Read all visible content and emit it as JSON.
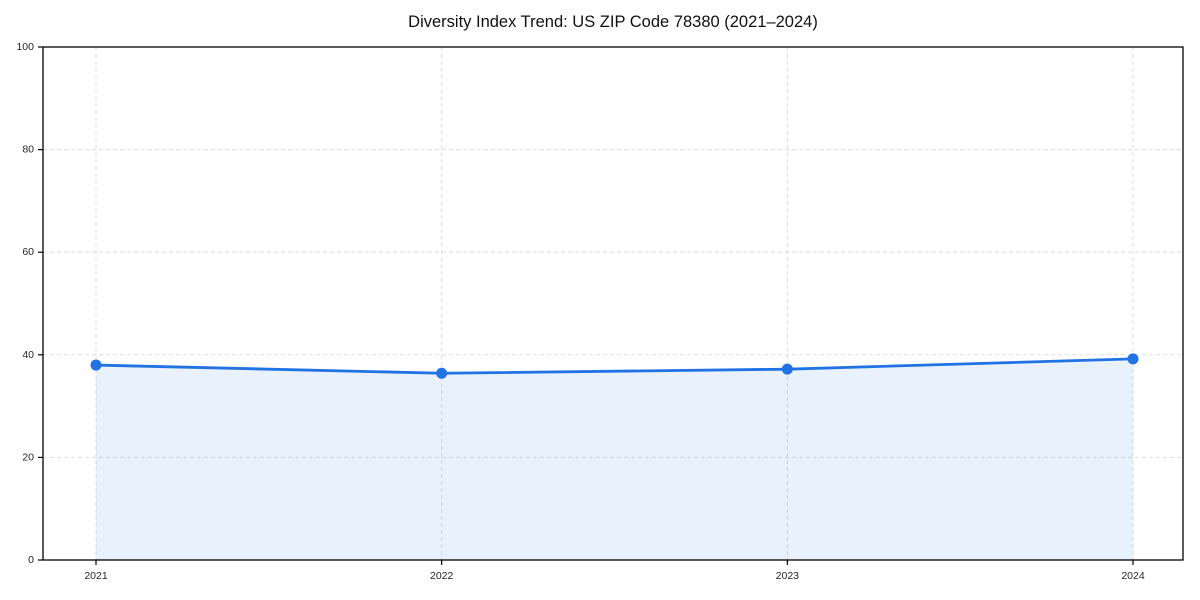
{
  "chart_data": {
    "type": "line",
    "title": "Diversity Index Trend: US ZIP Code 78380 (2021–2024)",
    "x": [
      "2021",
      "2022",
      "2023",
      "2024"
    ],
    "series": [
      {
        "name": "Diversity Index",
        "values": [
          38.0,
          36.4,
          37.2,
          39.2
        ]
      }
    ],
    "xlabel": "",
    "ylabel": "",
    "ylim": [
      0,
      100
    ],
    "yticks": [
      0,
      20,
      40,
      60,
      80,
      100
    ],
    "grid": true,
    "grid_style": "dashed",
    "legend_position": "none",
    "line_color": "#2172e3",
    "marker": "circle",
    "marker_color": "#2172e3",
    "fill_color": "#2172e3",
    "fill_opacity": 0.1,
    "grid_color": "#dddddd",
    "spine_color": "#000000",
    "tick_label_color": "#262626"
  }
}
